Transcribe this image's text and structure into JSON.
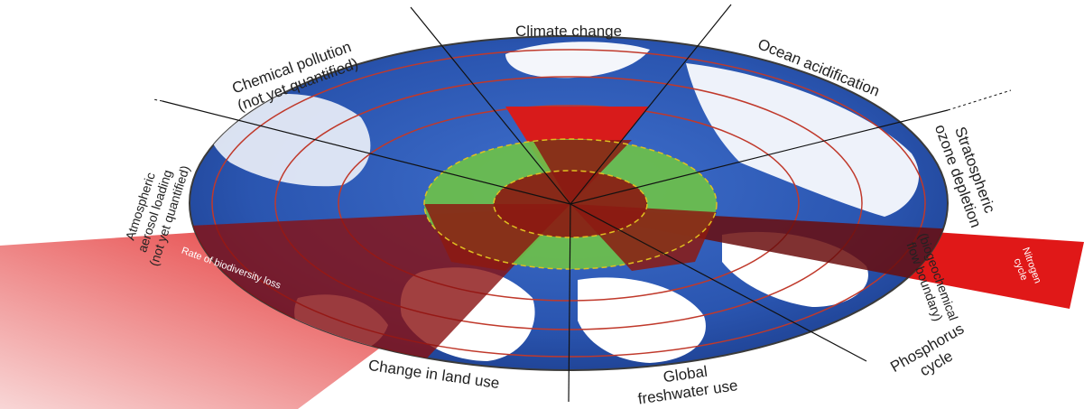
{
  "diagram": {
    "boundaries": [
      {
        "id": "climate",
        "label": "Climate change"
      },
      {
        "id": "ocean",
        "label": "Ocean acidification"
      },
      {
        "id": "ozone",
        "label_lines": [
          "Stratospheric",
          "ozone depletion"
        ]
      },
      {
        "id": "nitrogen",
        "label_lines": [
          "Nitrogen",
          "cycle"
        ]
      },
      {
        "id": "biogeo",
        "label_lines": [
          "(biogeochemical",
          "flow boundary)"
        ]
      },
      {
        "id": "phosphorus",
        "label_lines": [
          "Phosphorus",
          "cycle"
        ]
      },
      {
        "id": "freshwater",
        "label_lines": [
          "Global",
          "freshwater use"
        ]
      },
      {
        "id": "landuse",
        "label": "Change in land use"
      },
      {
        "id": "biodiversity",
        "label": "Rate of biodiversity loss"
      },
      {
        "id": "aerosol",
        "label_lines": [
          "Atmospheric",
          "aerosol loading",
          "(not yet quantified)"
        ]
      },
      {
        "id": "chemical",
        "label_lines": [
          "Chemical pollution",
          "(not yet quantified)"
        ]
      }
    ],
    "colors": {
      "ocean": "#2a55b0",
      "land": "#ffffff",
      "safe_zone": "#6cc04a",
      "overshoot": "#d81b1b",
      "ring_line": "#c0392b",
      "threshold_line": "#e0c020"
    }
  }
}
